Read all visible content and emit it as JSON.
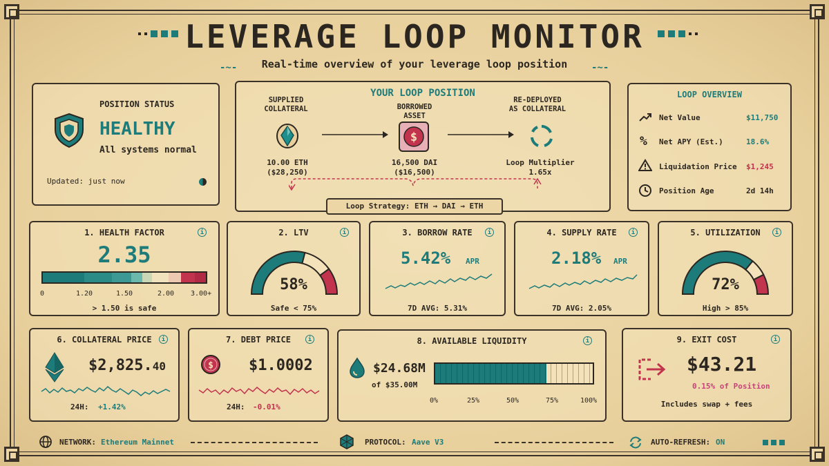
{
  "header": {
    "title": "LEVERAGE LOOP MONITOR",
    "subtitle": "Real-time overview of your leverage loop position"
  },
  "status": {
    "label": "POSITION STATUS",
    "value": "HEALTHY",
    "note": "All systems normal",
    "updated": "Updated: just now"
  },
  "loop": {
    "title": "YOUR LOOP POSITION",
    "supplied_label": "SUPPLIED\nCOLLATERAL",
    "supplied_label_1": "SUPPLIED",
    "supplied_label_2": "COLLATERAL",
    "borrowed_label_1": "BORROWED",
    "borrowed_label_2": "ASSET",
    "redeployed_label_1": "RE-DEPLOYED",
    "redeployed_label_2": "AS COLLATERAL",
    "supplied_amount": "10.00 ETH",
    "supplied_usd": "($28,250)",
    "borrowed_amount": "16,500 DAI",
    "borrowed_usd": "($16,500)",
    "multiplier_label": "Loop Multiplier",
    "multiplier_value": "1.65x",
    "strategy": "Loop Strategy: ETH → DAI → ETH"
  },
  "overview": {
    "title": "LOOP OVERVIEW",
    "rows": [
      {
        "label": "Net Value",
        "value": "$11,750",
        "icon": "trend-up-icon"
      },
      {
        "label": "Net APY (Est.)",
        "value": "18.6%",
        "icon": "percent-icon"
      },
      {
        "label": "Liquidation Price",
        "value": "$1,245",
        "icon": "warning-icon"
      },
      {
        "label": "Position Age",
        "value": "2d 14h",
        "icon": "clock-icon"
      }
    ]
  },
  "health": {
    "title": "1. HEALTH FACTOR",
    "value": "2.35",
    "ticks": [
      "0",
      "1.20",
      "1.50",
      "2.00",
      "3.00+"
    ],
    "note": "> 1.50 is safe"
  },
  "ltv": {
    "title": "2. LTV",
    "value": "58%",
    "fraction": 0.58,
    "note": "Safe < 75%"
  },
  "borrow": {
    "title": "3. BORROW RATE",
    "value": "5.42%",
    "unit": "APR",
    "avg": "7D AVG:  5.31%"
  },
  "supply": {
    "title": "4. SUPPLY RATE",
    "value": "2.18%",
    "unit": "APR",
    "avg": "7D AVG:  2.05%"
  },
  "util": {
    "title": "5. UTILIZATION",
    "value": "72%",
    "fraction": 0.72,
    "note": "High > 85%"
  },
  "collateral": {
    "title": "6. COLLATERAL PRICE",
    "value_main": "$2,825.",
    "value_cents": "40",
    "change_label": "24H:",
    "change": "+1.42%"
  },
  "debt": {
    "title": "7. DEBT PRICE",
    "value": "$1.0002",
    "change_label": "24H:",
    "change": "-0.01%"
  },
  "liquidity": {
    "title": "8. AVAILABLE LIQUIDITY",
    "value": "$24.68M",
    "total": "of $35.00M",
    "fraction": 0.705,
    "ticks": [
      "0%",
      "25%",
      "50%",
      "75%",
      "100%"
    ]
  },
  "exit": {
    "title": "9. EXIT COST",
    "value": "$43.21",
    "pct": "0.15% of Position",
    "note": "Includes swap + fees"
  },
  "footer": {
    "network_label": "NETWORK:",
    "network": "Ethereum Mainnet",
    "protocol_label": "PROTOCOL:",
    "protocol": "Aave V3",
    "refresh_label": "AUTO-REFRESH:",
    "refresh": "ON"
  },
  "colors": {
    "teal": "#1d7c7a",
    "red": "#c2334e",
    "ink": "#2b2620",
    "paper": "#ecd6a6"
  }
}
